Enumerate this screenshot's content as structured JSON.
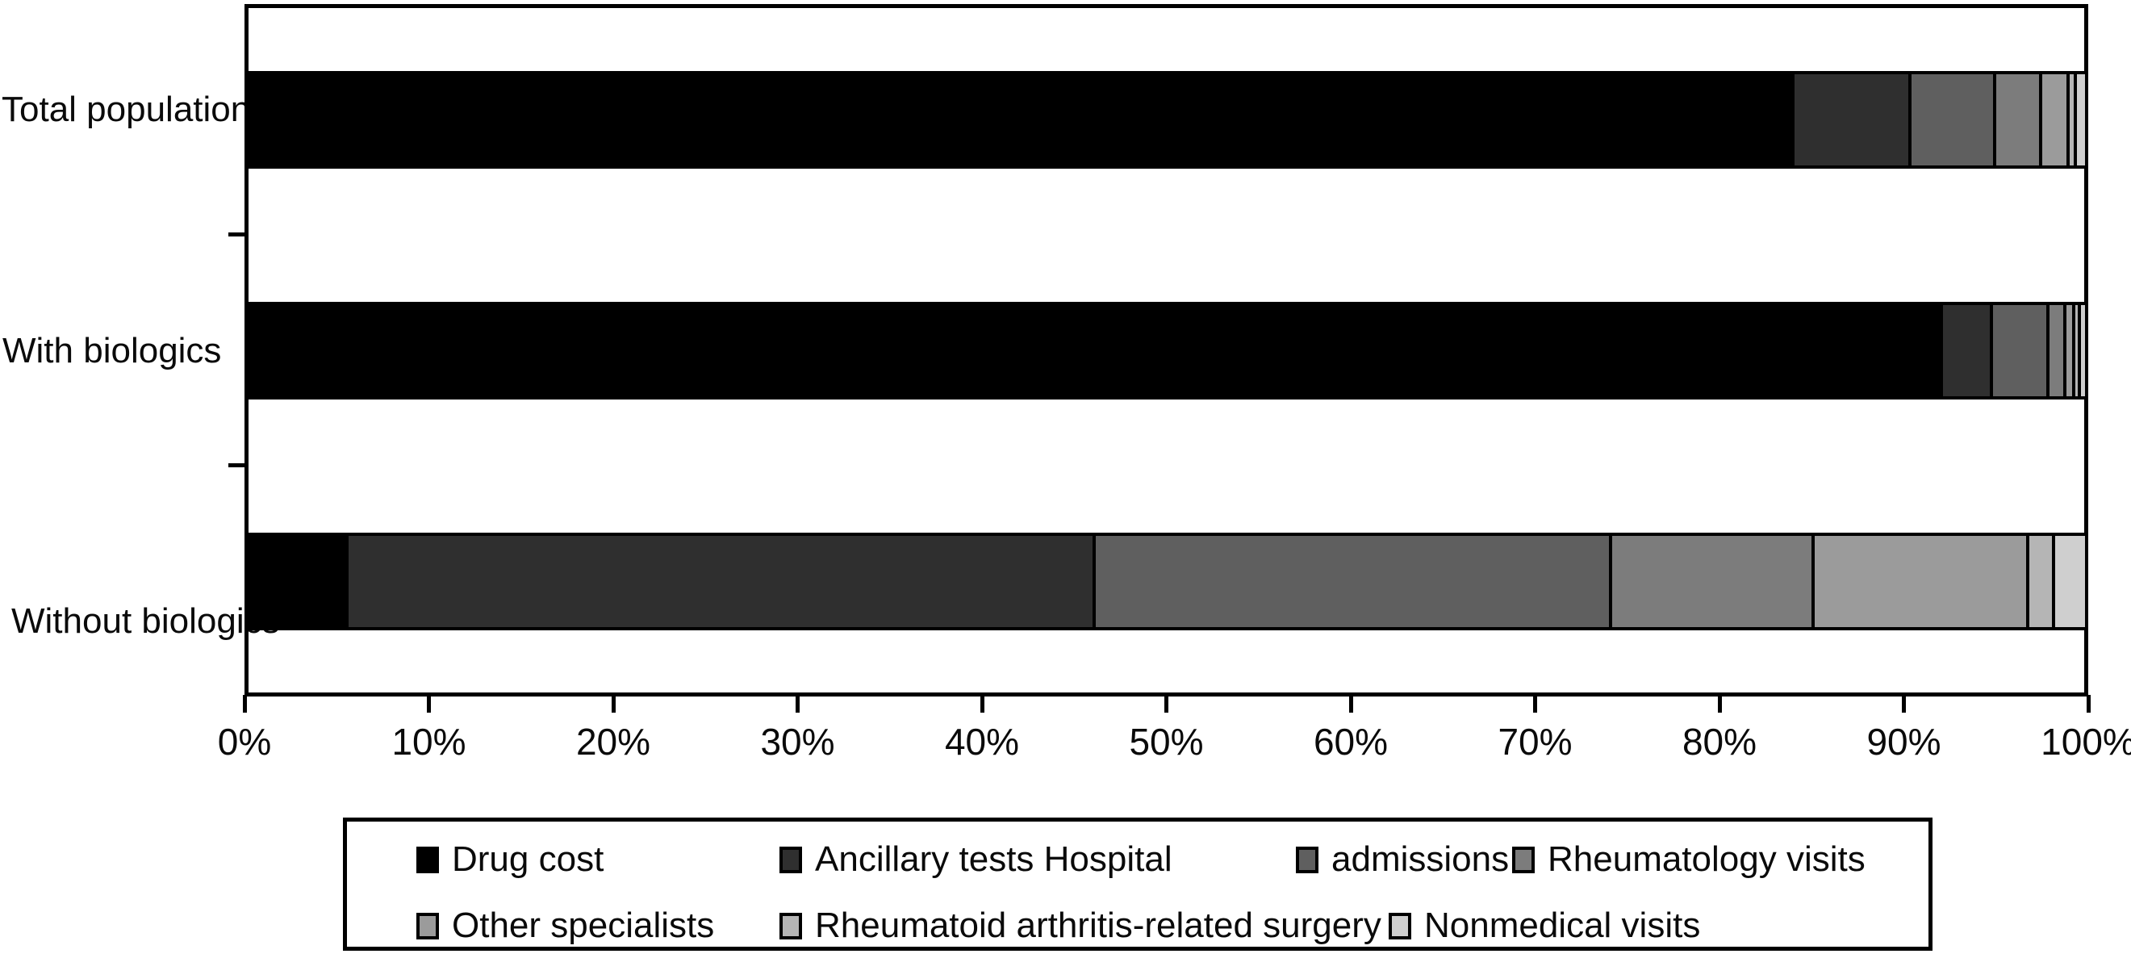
{
  "figure": {
    "category_labels": [
      "Total population",
      "With biologics",
      "Without biologics"
    ],
    "x_axis": {
      "tick_labels": [
        "0%",
        "10%",
        "20%",
        "30%",
        "40%",
        "50%",
        "60%",
        "70%",
        "80%",
        "90%",
        "100%"
      ]
    }
  },
  "chart_data": {
    "type": "bar",
    "orientation": "horizontal",
    "stacked": true,
    "units": "percent",
    "title": "",
    "xlabel": "",
    "ylabel": "",
    "xlim": [
      0,
      100
    ],
    "grid": false,
    "legend_position": "bottom-boxed",
    "categories": [
      "Total population",
      "With biologics",
      "Without biologics"
    ],
    "series": [
      {
        "name": "Drug cost",
        "color": "#000000",
        "values": [
          84.0,
          92.1,
          5.3
        ]
      },
      {
        "name": "Ancillary tests Hospital",
        "color": "#2f2f2f",
        "values": [
          6.4,
          2.7,
          40.7
        ]
      },
      {
        "name": "admissions",
        "color": "#5f5f5f",
        "values": [
          4.6,
          3.1,
          28.1
        ]
      },
      {
        "name": "Rheumatology visits",
        "color": "#7c7c7c",
        "values": [
          2.5,
          0.9,
          11.0
        ]
      },
      {
        "name": "Other specialists",
        "color": "#9b9b9b",
        "values": [
          1.5,
          0.5,
          11.7
        ]
      },
      {
        "name": "Rheumatoid arthritis-related surgery",
        "color": "#b5b5b5",
        "values": [
          0.4,
          0.3,
          1.4
        ]
      },
      {
        "name": "Nonmedical visits",
        "color": "#cfcfcf",
        "values": [
          0.6,
          0.4,
          1.8
        ]
      }
    ]
  }
}
